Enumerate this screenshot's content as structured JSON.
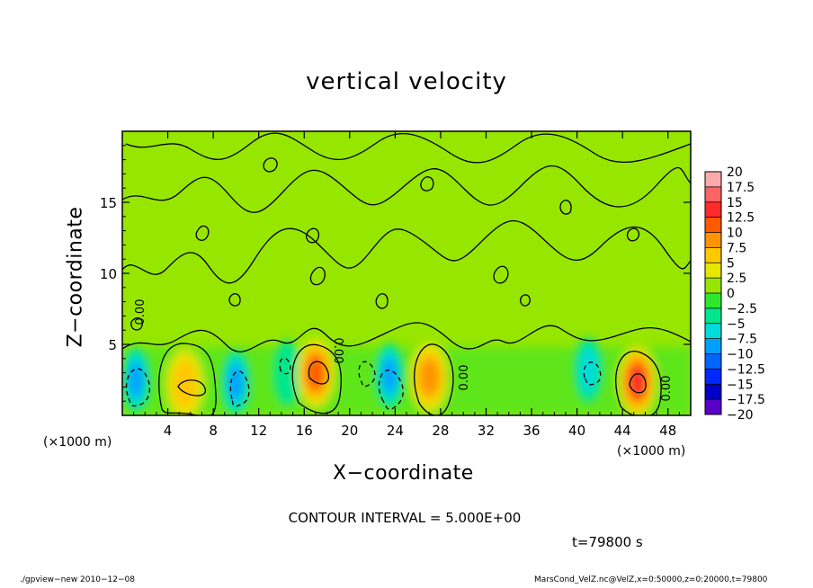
{
  "title": "vertical velocity",
  "x_axis_label": "X−coordinate",
  "y_axis_label": "Z−coordinate",
  "x_unit_left": "(×1000 m)",
  "x_unit_right": "(×1000 m)",
  "contour_interval_text": "CONTOUR INTERVAL = 5.000E+00",
  "time_text": "t=79800 s",
  "footer_left": "./gpview−new   2010−12−08",
  "footer_right": "MarsCond_VelZ.nc@VelZ,x=0:50000,z=0:20000,t=79800",
  "contour_labels": [
    "0.00",
    "0.00",
    "0.00",
    "0.00"
  ],
  "colorbar": {
    "ticks": [
      "20",
      "17.5",
      "15",
      "12.5",
      "10",
      "7.5",
      "5",
      "2.5",
      "0",
      "−2.5",
      "−5",
      "−7.5",
      "−10",
      "−12.5",
      "−15",
      "−17.5",
      "−20"
    ],
    "colors": [
      "#ffaaaa",
      "#ff6464",
      "#ff2a2a",
      "#ff5a00",
      "#ff9400",
      "#ffc800",
      "#e6e600",
      "#96e600",
      "#2ee62e",
      "#00e68c",
      "#00dcdc",
      "#00a0ff",
      "#0064ff",
      "#0028ff",
      "#0000c8",
      "#5a00c8"
    ]
  },
  "chart_data": {
    "type": "heatmap",
    "title": "vertical velocity",
    "xlabel": "X−coordinate",
    "ylabel": "Z−coordinate",
    "x_unit": "(×1000 m)",
    "xlim": [
      0,
      50
    ],
    "ylim": [
      0,
      20
    ],
    "x_ticks": [
      4,
      8,
      12,
      16,
      20,
      24,
      28,
      32,
      36,
      40,
      44,
      48
    ],
    "y_ticks": [
      5,
      10,
      15
    ],
    "contour_interval": 5.0,
    "colorbar_range": [
      -20,
      20
    ],
    "colorbar_step": 2.5,
    "updraft_cores": [
      {
        "x": 5.5,
        "z": 2.2,
        "value": 5
      },
      {
        "x": 17.0,
        "z": 3.0,
        "value": 10
      },
      {
        "x": 27.0,
        "z": 2.7,
        "value": 7.5
      },
      {
        "x": 45.3,
        "z": 2.4,
        "value": 12.5
      }
    ],
    "downdraft_cores": [
      {
        "x": 1.2,
        "z": 2.5,
        "value": -7.5
      },
      {
        "x": 10.0,
        "z": 2.3,
        "value": -7.5
      },
      {
        "x": 14.5,
        "z": 3.0,
        "value": -2.5
      },
      {
        "x": 23.5,
        "z": 2.8,
        "value": -7.5
      },
      {
        "x": 41.0,
        "z": 3.2,
        "value": -5
      }
    ]
  }
}
